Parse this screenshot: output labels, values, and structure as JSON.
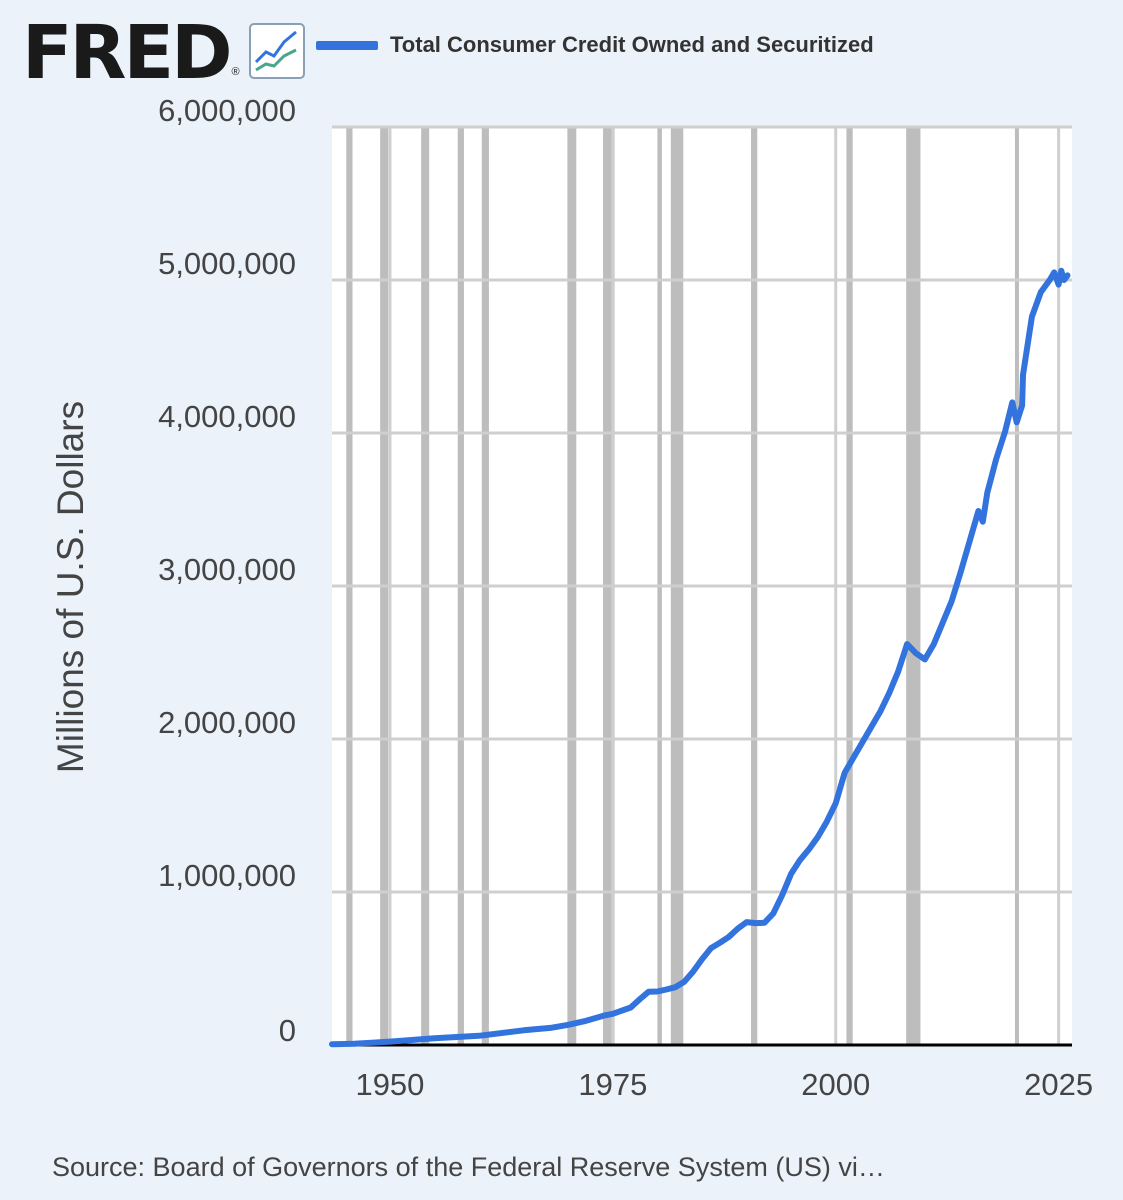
{
  "header": {
    "logo_text": "FRED",
    "logo_mark": "®",
    "logo_icon": "trend-lines-icon"
  },
  "source": "Source: Board of Governors of the Federal Reserve System (US) vi…",
  "colors": {
    "background": "#ebf2fa",
    "plot_background": "#ffffff",
    "series": "#3373dd",
    "recession": "#bdbdbd",
    "grid": "#cfcfcf"
  },
  "chart_data": {
    "type": "line",
    "xlabel": "",
    "ylabel": "Millions of U.S. Dollars",
    "xlim": [
      1943.5,
      2026.5
    ],
    "ylim": [
      0,
      6000000
    ],
    "x_ticks": [
      "1950",
      "1975",
      "2000",
      "2025"
    ],
    "x_tick_values": [
      1950,
      1975,
      2000,
      2025
    ],
    "y_ticks": [
      "0",
      "1,000,000",
      "2,000,000",
      "3,000,000",
      "4,000,000",
      "5,000,000",
      "6,000,000"
    ],
    "y_tick_values": [
      0,
      1000000,
      2000000,
      3000000,
      4000000,
      5000000,
      6000000
    ],
    "grid": true,
    "legend_position": "top",
    "recessions": [
      [
        1945.1,
        1945.8
      ],
      [
        1948.9,
        1949.8
      ],
      [
        1953.5,
        1954.4
      ],
      [
        1957.6,
        1958.3
      ],
      [
        1960.3,
        1961.1
      ],
      [
        1969.9,
        1970.9
      ],
      [
        1973.9,
        1975.2
      ],
      [
        1980.0,
        1980.5
      ],
      [
        1981.5,
        1982.9
      ],
      [
        1990.5,
        1991.2
      ],
      [
        2001.2,
        2001.9
      ],
      [
        2007.9,
        2009.5
      ],
      [
        2020.1,
        2020.4
      ]
    ],
    "series": [
      {
        "name": "Total Consumer Credit Owned and Securitized",
        "x": [
          1943.5,
          1946,
          1950,
          1955,
          1960,
          1965,
          1968,
          1970,
          1972,
          1974,
          1975,
          1977,
          1978,
          1979,
          1980,
          1981,
          1982,
          1983,
          1984,
          1985,
          1986,
          1987,
          1988,
          1989,
          1990,
          1991,
          1992,
          1993,
          1994,
          1995,
          1996,
          1997,
          1998,
          1999,
          2000,
          2001,
          2002,
          2003,
          2004,
          2005,
          2006,
          2007,
          2008,
          2009,
          2010,
          2011,
          2012,
          2013,
          2014,
          2015,
          2016,
          2016.5,
          2017,
          2018,
          2019,
          2019.8,
          2020.3,
          2020.9,
          2021,
          2022,
          2023,
          2024,
          2024.5,
          2025,
          2025.3,
          2025.6,
          2026
        ],
        "values": [
          5000,
          8000,
          22000,
          44000,
          60000,
          96000,
          112000,
          132000,
          158000,
          192000,
          204000,
          245000,
          298000,
          348000,
          350000,
          363000,
          378000,
          413000,
          480000,
          561000,
          633000,
          668000,
          706000,
          760000,
          803000,
          797000,
          799000,
          860000,
          980000,
          1120000,
          1210000,
          1280000,
          1360000,
          1460000,
          1580000,
          1780000,
          1880000,
          1980000,
          2080000,
          2180000,
          2300000,
          2440000,
          2620000,
          2560000,
          2520000,
          2620000,
          2760000,
          2900000,
          3090000,
          3290000,
          3490000,
          3420000,
          3610000,
          3830000,
          4010000,
          4200000,
          4070000,
          4180000,
          4380000,
          4760000,
          4920000,
          5000000,
          5050000,
          4970000,
          5060000,
          5000000,
          5030000
        ]
      }
    ]
  }
}
